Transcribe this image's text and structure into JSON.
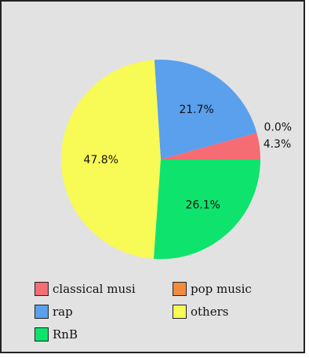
{
  "chart_data": {
    "type": "pie",
    "title": "",
    "slices": [
      {
        "label": "classical musi",
        "value": 4.3,
        "display": "4.3%",
        "color": "#f56c73"
      },
      {
        "label": "pop music",
        "value": 0.0,
        "display": "0.0%",
        "color": "#f28b3c"
      },
      {
        "label": "rap",
        "value": 21.7,
        "display": "21.7%",
        "color": "#5aa0ec"
      },
      {
        "label": "others",
        "value": 47.8,
        "display": "47.8%",
        "color": "#f8fa56"
      },
      {
        "label": "RnB",
        "value": 26.1,
        "display": "26.1%",
        "color": "#0ee36d"
      }
    ],
    "legend_position": "bottom"
  }
}
